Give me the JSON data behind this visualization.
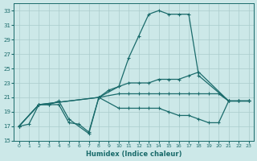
{
  "xlabel": "Humidex (Indice chaleur)",
  "ylabel": "",
  "xlim": [
    -0.5,
    23.5
  ],
  "ylim": [
    15,
    34
  ],
  "yticks": [
    15,
    17,
    19,
    21,
    23,
    25,
    27,
    29,
    31,
    33
  ],
  "xticks": [
    0,
    1,
    2,
    3,
    4,
    5,
    6,
    7,
    8,
    9,
    10,
    11,
    12,
    13,
    14,
    15,
    16,
    17,
    18,
    19,
    20,
    21,
    22,
    23
  ],
  "bg_color": "#cce8e8",
  "line_color": "#1a6b6b",
  "grid_color": "#aacccc",
  "s0_x": [
    0,
    1,
    2,
    3,
    4,
    5,
    6,
    7,
    8,
    10,
    11,
    12,
    13,
    14,
    15,
    16,
    17,
    18,
    21,
    22,
    23
  ],
  "s0_y": [
    17.0,
    17.3,
    20.0,
    20.0,
    20.0,
    17.5,
    17.3,
    16.2,
    21.0,
    22.5,
    26.5,
    29.5,
    32.5,
    33.0,
    32.5,
    32.5,
    32.5,
    24.0,
    20.5,
    20.5,
    20.5
  ],
  "s1_x": [
    0,
    2,
    3,
    4,
    5,
    7,
    8,
    9,
    10,
    11,
    12,
    13,
    14,
    15,
    16,
    17,
    18,
    21,
    22,
    23
  ],
  "s1_y": [
    17.0,
    20.0,
    20.0,
    20.5,
    18.0,
    16.0,
    21.0,
    22.0,
    22.5,
    23.0,
    23.0,
    23.0,
    23.5,
    23.5,
    23.5,
    24.0,
    24.5,
    20.5,
    20.5,
    20.5
  ],
  "s2_x": [
    0,
    2,
    8,
    10,
    11,
    12,
    13,
    14,
    15,
    16,
    17,
    18,
    19,
    20,
    21,
    22,
    23
  ],
  "s2_y": [
    17.0,
    20.0,
    21.0,
    21.5,
    21.5,
    21.5,
    21.5,
    21.5,
    21.5,
    21.5,
    21.5,
    21.5,
    21.5,
    21.5,
    20.5,
    20.5,
    20.5
  ],
  "s3_x": [
    0,
    2,
    8,
    10,
    11,
    12,
    13,
    14,
    15,
    16,
    17,
    18,
    19,
    20,
    21,
    22,
    23
  ],
  "s3_y": [
    17.0,
    20.0,
    21.0,
    19.5,
    19.5,
    19.5,
    19.5,
    19.5,
    19.0,
    18.5,
    18.5,
    18.0,
    17.5,
    17.5,
    20.5,
    20.5,
    20.5
  ]
}
